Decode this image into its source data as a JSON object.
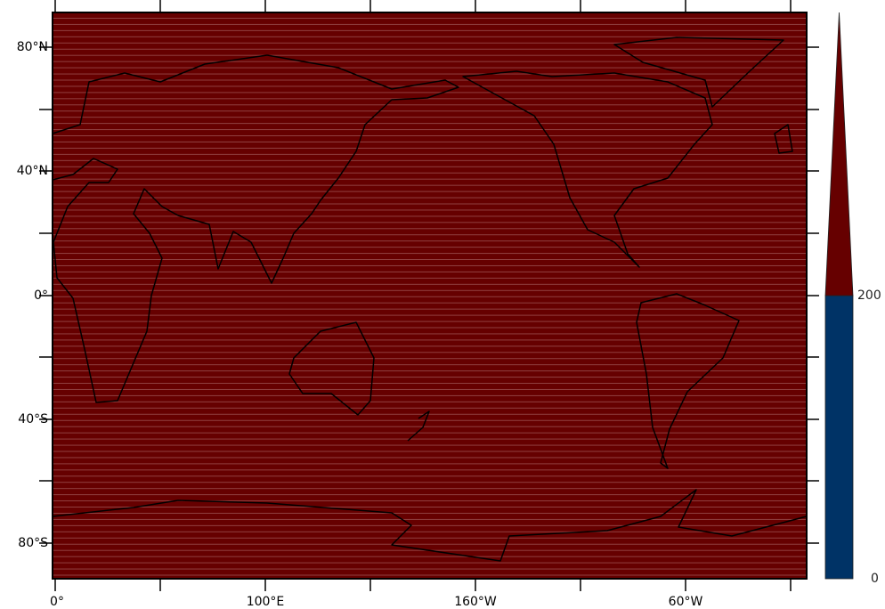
{
  "map": {
    "projection": "cylindrical equidistant, Pacific-centered",
    "fill_color": "#660000",
    "coastline_color": "#000000",
    "lat_labels": [
      "80°N",
      "40°N",
      "0°",
      "40°S",
      "80°S"
    ],
    "lon_labels": [
      "0°",
      "100°E",
      "160°W",
      "60°W"
    ]
  },
  "colorbar": {
    "labels": [
      "200",
      "0"
    ],
    "colors": {
      "below_200": "#003366",
      "above_200": "#660000"
    }
  }
}
